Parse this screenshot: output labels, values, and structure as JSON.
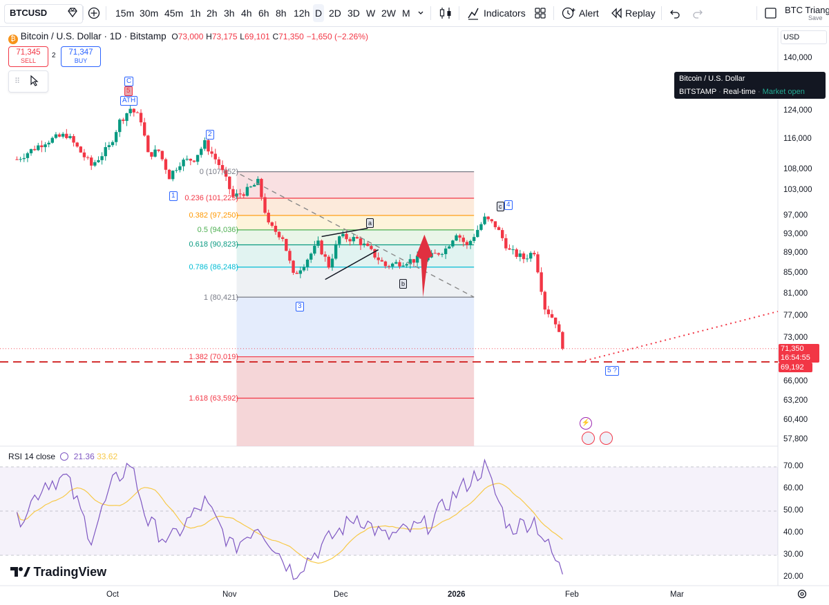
{
  "toolbar": {
    "symbol": "BTCUSD",
    "intervals": [
      "15m",
      "30m",
      "45m",
      "1h",
      "2h",
      "3h",
      "4h",
      "6h",
      "8h",
      "12h",
      "D",
      "2D",
      "3D",
      "W",
      "2W",
      "M"
    ],
    "selected_interval": "D",
    "indicators_label": "Indicators",
    "alert_label": "Alert",
    "replay_label": "Replay",
    "layout_name": "BTC Triangl",
    "save_label": "Save"
  },
  "legend": {
    "title": "Bitcoin / U.S. Dollar · 1D · Bitstamp",
    "open_label": "O",
    "open": "73,000",
    "high_label": "H",
    "high": "73,175",
    "low_label": "L",
    "low": "69,101",
    "close_label": "C",
    "close": "71,350",
    "change": "−1,650 (−2.26%)"
  },
  "trade": {
    "sell_price": "71,345",
    "sell_label": "SELL",
    "spread": "2",
    "buy_price": "71,347",
    "buy_label": "BUY"
  },
  "tooltip": {
    "title": "Bitcoin / U.S. Dollar",
    "exchange": "BITSTAMP",
    "realtime": "Real-time",
    "status": "Market open"
  },
  "price_axis": {
    "currency": "USD",
    "ticks": [
      "140,000",
      "124,000",
      "116,000",
      "108,000",
      "103,000",
      "97,000",
      "93,000",
      "89,000",
      "85,000",
      "81,000",
      "77,000",
      "73,000",
      "66,000",
      "63,200",
      "60,400",
      "57,800"
    ],
    "current_price": "71,350",
    "countdown": "16:54:55",
    "support_price": "69,192"
  },
  "fib_levels": [
    {
      "label": "0 (107,652)",
      "color": "#787b86"
    },
    {
      "label": "0.236 (101,225)",
      "color": "#f23645"
    },
    {
      "label": "0.382 (97,250)",
      "color": "#ff9800"
    },
    {
      "label": "0.5 (94,036)",
      "color": "#4caf50"
    },
    {
      "label": "0.618 (90,823)",
      "color": "#089981"
    },
    {
      "label": "0.786 (86,248)",
      "color": "#00bcd4"
    },
    {
      "label": "1 (80,421)",
      "color": "#787b86"
    },
    {
      "label": "1.382 (70,019)",
      "color": "#f23645"
    },
    {
      "label": "1.618 (63,592)",
      "color": "#f23645"
    }
  ],
  "wave_labels": {
    "c_top": "C",
    "five_top": "5",
    "ath": "ATH",
    "w1": "1",
    "w2": "2",
    "w3": "3",
    "wa": "a",
    "wb": "b",
    "wc": "c",
    "w4": "4",
    "w5": "5 ?"
  },
  "rsi": {
    "label": "RSI 14 close",
    "value": "21.36",
    "ma_value": "33.62",
    "ticks": [
      "70.00",
      "60.00",
      "50.00",
      "40.00",
      "30.00",
      "20.00"
    ]
  },
  "time_axis": {
    "labels": [
      "Oct",
      "Nov",
      "Dec",
      "2026",
      "Feb",
      "Mar"
    ]
  },
  "branding": {
    "logo_text": "TradingView"
  },
  "colors": {
    "up": "#089981",
    "down": "#f23645",
    "accent": "#2962ff",
    "rsi_line": "#7e57c2",
    "rsi_ma": "#f7c948"
  },
  "chart_data": {
    "type": "candlestick",
    "symbol": "BTCUSD",
    "interval": "1D",
    "y_scale": "log",
    "ylim": [
      57800,
      140000
    ],
    "close_path": [
      {
        "date": "2025-09-04",
        "close": 110800
      },
      {
        "date": "2025-09-12",
        "close": 115500
      },
      {
        "date": "2025-09-18",
        "close": 117300
      },
      {
        "date": "2025-09-25",
        "close": 109200
      },
      {
        "date": "2025-09-30",
        "close": 114000
      },
      {
        "date": "2025-10-03",
        "close": 121000
      },
      {
        "date": "2025-10-06",
        "close": 124700
      },
      {
        "date": "2025-10-09",
        "close": 121500
      },
      {
        "date": "2025-10-11",
        "close": 112000
      },
      {
        "date": "2025-10-14",
        "close": 113000
      },
      {
        "date": "2025-10-17",
        "close": 106500
      },
      {
        "date": "2025-10-20",
        "close": 110000
      },
      {
        "date": "2025-10-24",
        "close": 111000
      },
      {
        "date": "2025-10-27",
        "close": 115000
      },
      {
        "date": "2025-10-31",
        "close": 109500
      },
      {
        "date": "2025-11-04",
        "close": 101500
      },
      {
        "date": "2025-11-08",
        "close": 103000
      },
      {
        "date": "2025-11-11",
        "close": 105000
      },
      {
        "date": "2025-11-14",
        "close": 95000
      },
      {
        "date": "2025-11-18",
        "close": 92500
      },
      {
        "date": "2025-11-21",
        "close": 84500
      },
      {
        "date": "2025-11-24",
        "close": 87000
      },
      {
        "date": "2025-11-28",
        "close": 91000
      },
      {
        "date": "2025-12-01",
        "close": 86500
      },
      {
        "date": "2025-12-04",
        "close": 92500
      },
      {
        "date": "2025-12-09",
        "close": 92000
      },
      {
        "date": "2025-12-12",
        "close": 90000
      },
      {
        "date": "2025-12-17",
        "close": 86500
      },
      {
        "date": "2025-12-23",
        "close": 87500
      },
      {
        "date": "2025-12-29",
        "close": 88000
      },
      {
        "date": "2026-01-03",
        "close": 90000
      },
      {
        "date": "2026-01-06",
        "close": 93500
      },
      {
        "date": "2026-01-09",
        "close": 90500
      },
      {
        "date": "2026-01-14",
        "close": 96500
      },
      {
        "date": "2026-01-17",
        "close": 95000
      },
      {
        "date": "2026-01-21",
        "close": 89500
      },
      {
        "date": "2026-01-25",
        "close": 88000
      },
      {
        "date": "2026-01-28",
        "close": 89500
      },
      {
        "date": "2026-01-31",
        "close": 78500
      },
      {
        "date": "2026-02-03",
        "close": 76000
      },
      {
        "date": "2026-02-05",
        "close": 71350
      }
    ],
    "rsi_path": [
      {
        "date": "2025-09-04",
        "rsi": 45
      },
      {
        "date": "2025-09-12",
        "rsi": 63
      },
      {
        "date": "2025-09-18",
        "rsi": 65
      },
      {
        "date": "2025-09-25",
        "rsi": 38
      },
      {
        "date": "2025-10-01",
        "rsi": 62
      },
      {
        "date": "2025-10-06",
        "rsi": 72
      },
      {
        "date": "2025-10-11",
        "rsi": 45
      },
      {
        "date": "2025-10-17",
        "rsi": 36
      },
      {
        "date": "2025-10-27",
        "rsi": 54
      },
      {
        "date": "2025-11-04",
        "rsi": 33
      },
      {
        "date": "2025-11-11",
        "rsi": 44
      },
      {
        "date": "2025-11-21",
        "rsi": 22
      },
      {
        "date": "2025-12-01",
        "rsi": 37
      },
      {
        "date": "2025-12-09",
        "rsi": 48
      },
      {
        "date": "2025-12-17",
        "rsi": 38
      },
      {
        "date": "2025-12-29",
        "rsi": 44
      },
      {
        "date": "2026-01-06",
        "rsi": 58
      },
      {
        "date": "2026-01-14",
        "rsi": 70
      },
      {
        "date": "2026-01-21",
        "rsi": 42
      },
      {
        "date": "2026-01-28",
        "rsi": 46
      },
      {
        "date": "2026-02-05",
        "rsi": 21.36
      }
    ]
  }
}
